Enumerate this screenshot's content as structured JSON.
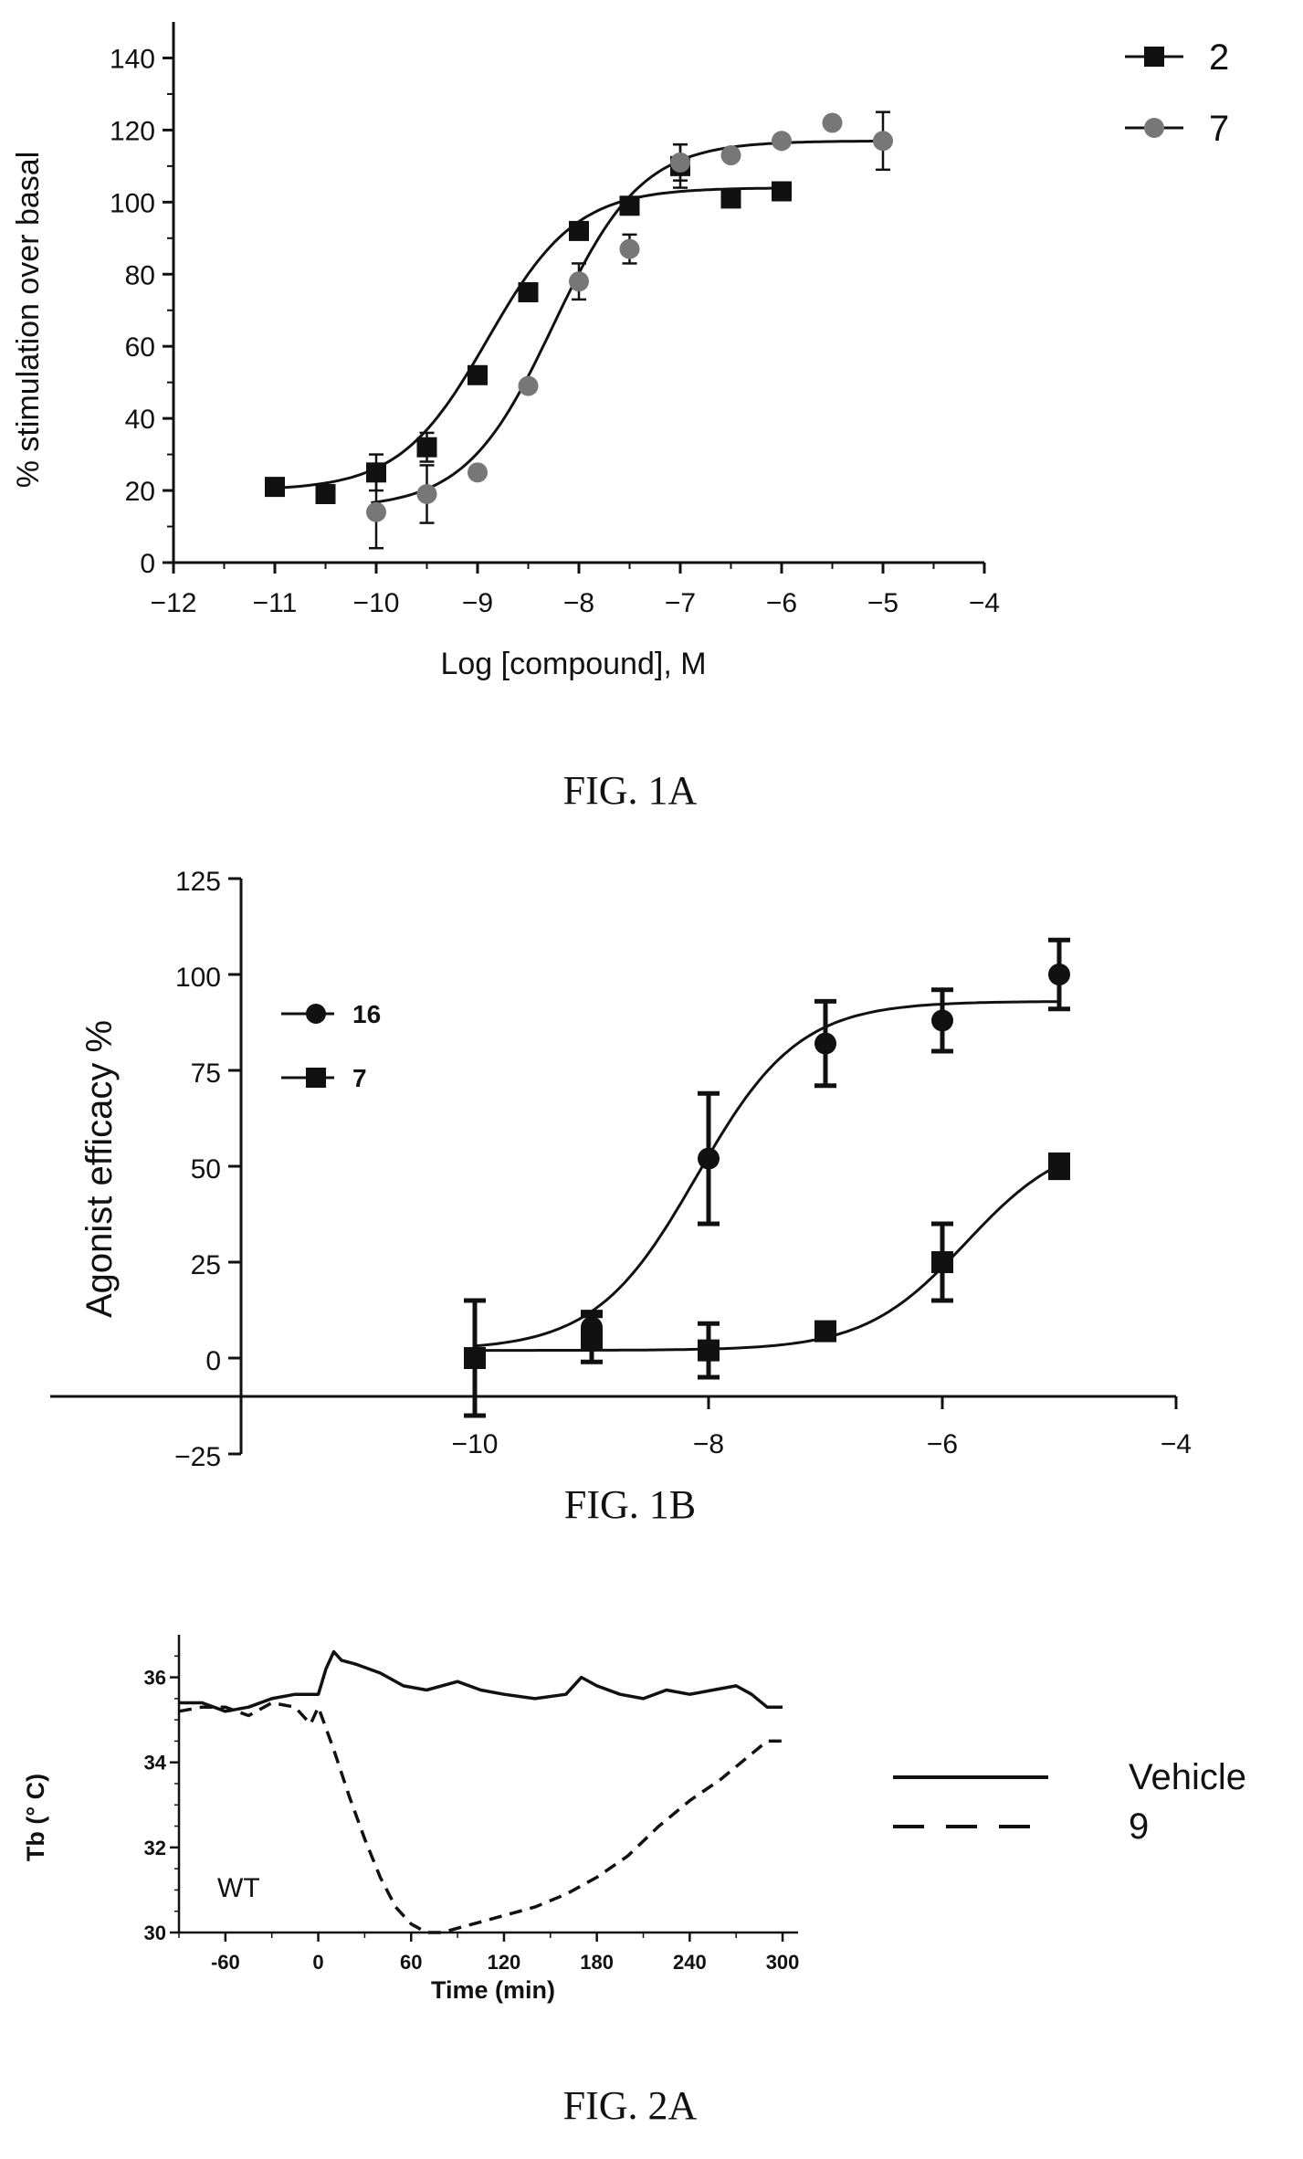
{
  "chart_data": [
    {
      "id": "fig1a",
      "type": "scatter",
      "caption": "FIG. 1A",
      "xlabel": "Log [compound], M",
      "ylabel": "% stimulation over basal",
      "xlim": [
        -12,
        -4
      ],
      "ylim": [
        0,
        150
      ],
      "xticks": [
        -12,
        -11,
        -10,
        -9,
        -8,
        -7,
        -6,
        -5,
        -4
      ],
      "yticks": [
        0,
        20,
        40,
        60,
        80,
        100,
        120,
        140
      ],
      "grid": false,
      "legend_position": "top-right",
      "series": [
        {
          "name": "2",
          "marker": "square",
          "color": "#111111",
          "x": [
            -11,
            -10.5,
            -10,
            -9.5,
            -9,
            -8.5,
            -8,
            -7.5,
            -7,
            -6.5,
            -6
          ],
          "y": [
            21,
            19,
            25,
            32,
            52,
            75,
            92,
            99,
            110,
            101,
            103
          ],
          "err": [
            0,
            0,
            5,
            4,
            0,
            0,
            0,
            0,
            6,
            0,
            0
          ],
          "fit": {
            "bottom": 20,
            "top": 104,
            "log_ec50": -8.9,
            "hill": 1.0
          }
        },
        {
          "name": "7",
          "marker": "circle",
          "color": "#777777",
          "x": [
            -10,
            -9.5,
            -9,
            -8.5,
            -8,
            -7.5,
            -7,
            -6.5,
            -6,
            -5.5,
            -5
          ],
          "y": [
            14,
            19,
            25,
            49,
            78,
            87,
            111,
            113,
            117,
            122,
            117
          ],
          "err": [
            10,
            8,
            0,
            0,
            5,
            4,
            5,
            0,
            0,
            0,
            8
          ],
          "fit": {
            "bottom": 15,
            "top": 117,
            "log_ec50": -8.25,
            "hill": 1.0
          }
        }
      ]
    },
    {
      "id": "fig1b",
      "type": "scatter",
      "caption": "FIG. 1B",
      "xlabel": "",
      "ylabel": "Agonist efficacy %",
      "xlim": [
        -12,
        -4
      ],
      "ylim": [
        -25,
        125
      ],
      "xticks": [
        -10,
        -8,
        -6,
        -4
      ],
      "yticks": [
        -25,
        0,
        25,
        50,
        75,
        100,
        125
      ],
      "reference_line_y": -10,
      "grid": false,
      "legend_position": "top-left",
      "series": [
        {
          "name": "16",
          "marker": "circle",
          "color": "#111111",
          "x": [
            -10,
            -9,
            -8,
            -7,
            -6,
            -5
          ],
          "y": [
            0,
            8,
            52,
            82,
            88,
            100
          ],
          "err": [
            15,
            4,
            17,
            11,
            8,
            9
          ],
          "fit": {
            "bottom": 2,
            "top": 93,
            "log_ec50": -8.1,
            "hill": 1.0
          }
        },
        {
          "name": "7",
          "marker": "square",
          "color": "#111111",
          "x": [
            -10,
            -9,
            -8,
            -7,
            -6,
            -5
          ],
          "y": [
            0,
            5,
            2,
            7,
            25,
            50
          ],
          "err": [
            0,
            6,
            7,
            0,
            10,
            3
          ],
          "fit": {
            "bottom": 2,
            "top": 58,
            "log_ec50": -5.8,
            "hill": 1.0
          }
        }
      ]
    },
    {
      "id": "fig2a",
      "type": "line",
      "caption": "FIG. 2A",
      "xlabel": "Time (min)",
      "ylabel": "Tb (° C)",
      "xlim": [
        -90,
        310
      ],
      "ylim": [
        30,
        37
      ],
      "xticks": [
        -60,
        0,
        60,
        120,
        180,
        240,
        300
      ],
      "yticks": [
        30,
        32,
        34,
        36
      ],
      "annotation": "WT",
      "grid": false,
      "legend_position": "right",
      "series": [
        {
          "name": "Vehicle",
          "style": "solid",
          "color": "#111111",
          "x": [
            -90,
            -75,
            -60,
            -45,
            -30,
            -15,
            0,
            5,
            10,
            15,
            25,
            40,
            55,
            70,
            90,
            105,
            120,
            140,
            160,
            170,
            180,
            195,
            210,
            225,
            240,
            255,
            270,
            280,
            290,
            300
          ],
          "y": [
            35.4,
            35.4,
            35.2,
            35.3,
            35.5,
            35.6,
            35.6,
            36.2,
            36.6,
            36.4,
            36.3,
            36.1,
            35.8,
            35.7,
            35.9,
            35.7,
            35.6,
            35.5,
            35.6,
            36.0,
            35.8,
            35.6,
            35.5,
            35.7,
            35.6,
            35.7,
            35.8,
            35.6,
            35.3,
            35.3
          ]
        },
        {
          "name": "9",
          "style": "dashed",
          "color": "#111111",
          "x": [
            -90,
            -75,
            -60,
            -45,
            -30,
            -15,
            -5,
            0,
            10,
            20,
            30,
            40,
            50,
            60,
            70,
            80,
            100,
            120,
            140,
            160,
            180,
            200,
            220,
            240,
            260,
            280,
            290,
            300
          ],
          "y": [
            35.2,
            35.3,
            35.3,
            35.1,
            35.4,
            35.3,
            34.9,
            35.3,
            34.3,
            33.2,
            32.2,
            31.3,
            30.6,
            30.2,
            30.0,
            30.0,
            30.2,
            30.4,
            30.6,
            30.9,
            31.3,
            31.8,
            32.5,
            33.1,
            33.6,
            34.2,
            34.5,
            34.5
          ]
        }
      ]
    }
  ]
}
